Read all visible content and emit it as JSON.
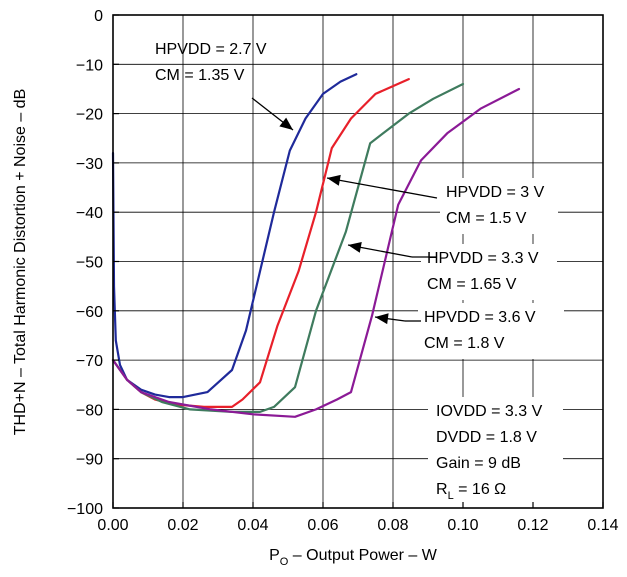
{
  "chart_data": {
    "type": "line",
    "xlabel": "P_O – Output Power – W",
    "xlabel_parts": {
      "main": "P",
      "sub": "O",
      "rest": " – Output Power – W"
    },
    "ylabel": "THD+N – Total Harmonic Distortion + Noise – dB",
    "xlim": [
      0,
      0.14
    ],
    "ylim": [
      -100,
      0
    ],
    "x_ticks": [
      0,
      0.02,
      0.04,
      0.06,
      0.08,
      0.1,
      0.12,
      0.14
    ],
    "x_tick_labels": [
      "0.00",
      "0.02",
      "0.04",
      "0.06",
      "0.08",
      "0.10",
      "0.12",
      "0.14"
    ],
    "y_ticks": [
      0,
      -10,
      -20,
      -30,
      -40,
      -50,
      -60,
      -70,
      -80,
      -90,
      -100
    ],
    "y_tick_labels": [
      "0",
      "−10",
      "−20",
      "−30",
      "−40",
      "−50",
      "−60",
      "−70",
      "−80",
      "−90",
      "−100"
    ],
    "grid": true,
    "series": [
      {
        "color": "#1f2a9a",
        "x": [
          0.0,
          0.0003,
          0.0008,
          0.002,
          0.004,
          0.008,
          0.012,
          0.016,
          0.02,
          0.027,
          0.034,
          0.038,
          0.042,
          0.046,
          0.0505,
          0.055,
          0.06,
          0.065,
          0.0695
        ],
        "y": [
          -28,
          -55,
          -66,
          -71,
          -74,
          -76,
          -77,
          -77.5,
          -77.5,
          -76.5,
          -72,
          -64,
          -52,
          -40,
          -27.5,
          -21,
          -16,
          -13.5,
          -12
        ]
      },
      {
        "color": "#e8202a",
        "x": [
          0.0,
          0.004,
          0.008,
          0.012,
          0.018,
          0.026,
          0.034,
          0.037,
          0.042,
          0.047,
          0.053,
          0.058,
          0.0625,
          0.068,
          0.075,
          0.0845
        ],
        "y": [
          -70,
          -74,
          -76.5,
          -78,
          -79,
          -79.5,
          -79.5,
          -78,
          -74.5,
          -63,
          -52,
          -40,
          -27,
          -21,
          -16,
          -13
        ]
      },
      {
        "color": "#3f7b5e",
        "x": [
          0.0,
          0.004,
          0.008,
          0.014,
          0.022,
          0.034,
          0.042,
          0.046,
          0.052,
          0.058,
          0.0665,
          0.0735,
          0.0845,
          0.0915,
          0.1
        ],
        "y": [
          -70,
          -74,
          -76.5,
          -78.5,
          -80,
          -80.5,
          -80.5,
          -79.5,
          -75.5,
          -60,
          -44,
          -26,
          -20,
          -17,
          -14
        ]
      },
      {
        "color": "#8b1a96",
        "x": [
          0.0,
          0.004,
          0.008,
          0.016,
          0.028,
          0.04,
          0.052,
          0.058,
          0.064,
          0.068,
          0.074,
          0.0815,
          0.088,
          0.0955,
          0.105,
          0.116
        ],
        "y": [
          -70,
          -74,
          -76.5,
          -78.5,
          -80,
          -81,
          -81.5,
          -80,
          -78,
          -76.5,
          -61,
          -38.5,
          -29.5,
          -24,
          -19,
          -15
        ]
      }
    ],
    "annotations": [
      {
        "lines": [
          "HPVDD = 2.7 V",
          "CM = 1.35 V"
        ]
      },
      {
        "lines": [
          "HPVDD = 3 V",
          "CM = 1.5 V"
        ]
      },
      {
        "lines": [
          "HPVDD = 3.3 V",
          "CM = 1.65 V"
        ]
      },
      {
        "lines": [
          "HPVDD = 3.6 V",
          "CM = 1.8 V"
        ]
      }
    ],
    "conditions": {
      "lines": [
        "IOVDD = 3.3 V",
        "DVDD = 1.8 V",
        "Gain = 9 dB"
      ],
      "load": {
        "main": "R",
        "sub": "L",
        "rest": " =  16 Ω"
      }
    }
  }
}
